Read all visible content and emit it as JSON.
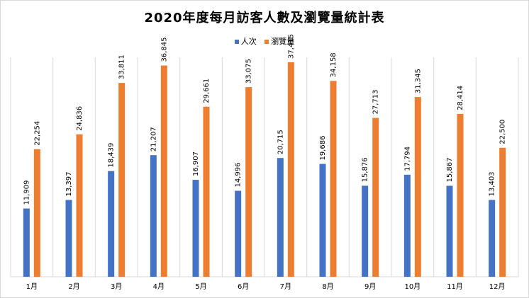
{
  "chart_data": {
    "type": "bar",
    "title": "2020年度每月訪客人數及瀏覽量統計表",
    "categories": [
      "1月",
      "2月",
      "3月",
      "4月",
      "5月",
      "6月",
      "7月",
      "8月",
      "9月",
      "10月",
      "11月",
      "12月"
    ],
    "series": [
      {
        "name": "人次",
        "color": "#4472c4",
        "values": [
          11909,
          13397,
          18439,
          21207,
          16907,
          14996,
          20715,
          19686,
          15876,
          17794,
          15867,
          13403
        ],
        "labels": [
          "11,909",
          "13,397",
          "18,439",
          "21,207",
          "16,907",
          "14,996",
          "20,715",
          "19,686",
          "15,876",
          "17,794",
          "15,867",
          "13,403"
        ]
      },
      {
        "name": "瀏覽量",
        "color": "#ed7d31",
        "values": [
          22254,
          24836,
          33811,
          36845,
          29661,
          33075,
          37415,
          34158,
          27713,
          31345,
          28414,
          22500
        ],
        "labels": [
          "22,254",
          "24,836",
          "33,811",
          "36,845",
          "29,661",
          "33,075",
          "37,415",
          "34,158",
          "27,713",
          "31,345",
          "28,414",
          "22,500"
        ]
      }
    ],
    "ylim": [
      0,
      40000
    ],
    "legend_position": "top",
    "grid": "vertical category separators"
  }
}
